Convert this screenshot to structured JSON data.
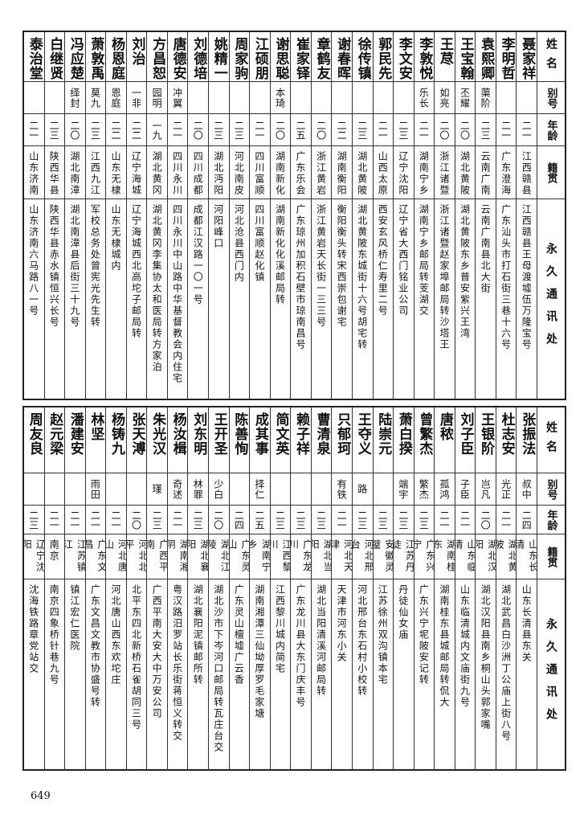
{
  "headers": {
    "name": "姓名",
    "alias": "别号",
    "age": "年龄",
    "native": "籍贯",
    "address": "永久通讯处"
  },
  "top_table": [
    {
      "name": "聂家祥",
      "alias": "",
      "age": "二一",
      "native": "江西赣县",
      "address": "江西赣县王母渡墟伍万隆宝号"
    },
    {
      "name": "李明哲",
      "alias": "",
      "age": "二一",
      "native": "广东澄海",
      "address": "广东汕头市打石街三巷十六号"
    },
    {
      "name": "袁熙卿",
      "alias": "蕖阶",
      "age": "二三",
      "native": "云南广南",
      "address": "云南广南县北大街"
    },
    {
      "name": "王宝翰",
      "alias": "丕耀",
      "age": "二〇",
      "native": "湖北黄陂",
      "address": "湖北黄陂东乡普安紫兴王湾"
    },
    {
      "name": "王荩",
      "alias": "如亮",
      "age": "二〇",
      "native": "浙江诸暨",
      "address": "浙江诸暨赵家埠邮局转沙塔王"
    },
    {
      "name": "李敦悦",
      "alias": "乐长",
      "age": "二一",
      "native": "湖南宁乡",
      "address": "湖南宁乡邮局转芰湖交"
    },
    {
      "name": "李文安",
      "alias": "",
      "age": "二三",
      "native": "辽宁沈阳",
      "address": "辽宁省大西门铭业公司"
    },
    {
      "name": "郭民先",
      "alias": "",
      "age": "二一",
      "native": "山西太原",
      "address": "西安玄风桥仁寿里二号"
    },
    {
      "name": "徐传镇",
      "alias": "",
      "age": "二三",
      "native": "湖北黄陂",
      "address": "湖北黄陂东城街十六号胡宅转"
    },
    {
      "name": "谢春晖",
      "alias": "",
      "age": "二二",
      "native": "湖南衡阳",
      "address": "衡阳衡头转宋西崇包谢宅"
    },
    {
      "name": "章鹤友",
      "alias": "",
      "age": "二〇",
      "native": "浙江黄岩",
      "address": "浙江黄岩天长街一三三号"
    },
    {
      "name": "崔家铎",
      "alias": "",
      "age": "二五",
      "native": "广东乐会",
      "address": "广东琼州加积石壁市琼南昌号"
    },
    {
      "name": "谢思聪",
      "alias": "本琦",
      "age": "二〇",
      "native": "湖南新化",
      "address": "湖南新化化溪邮局转"
    },
    {
      "name": "江硕朋",
      "alias": "",
      "age": "二一",
      "native": "四川富顺",
      "address": "四川富顺赵化镇"
    },
    {
      "name": "周家驹",
      "alias": "",
      "age": "二三",
      "native": "河北南皮",
      "address": "河北沧县西门内"
    },
    {
      "name": "姚精一",
      "alias": "",
      "age": "二三",
      "native": "湖北沔阳",
      "address": "河阳峰口"
    },
    {
      "name": "刘德培",
      "alias": "",
      "age": "二〇",
      "native": "四川成都",
      "address": "成都江汉路一〇一号"
    },
    {
      "name": "唐德安",
      "alias": "冲翼",
      "age": "二一",
      "native": "四川永川",
      "address": "四川永川中山路中华基督教会内住宅"
    },
    {
      "name": "方昌恕",
      "alias": "园明",
      "age": "一九",
      "native": "湖北黄冈",
      "address": "湖北黄冈李集协太和医局转方家泊"
    },
    {
      "name": "刘治",
      "alias": "一非",
      "age": "二二",
      "native": "辽宁海城",
      "address": "辽宁海城西北高坨子邮局转"
    },
    {
      "name": "杨恩庭",
      "alias": "恩庭",
      "age": "二二",
      "native": "山东无棣",
      "address": "山东无棣城内"
    },
    {
      "name": "萧敦禹",
      "alias": "莫九",
      "age": "二三",
      "native": "江西九江",
      "address": "军校总务处曾宪光先生转"
    },
    {
      "name": "冯应楚",
      "alias": "绎封",
      "age": "二〇",
      "native": "湖北南漳",
      "address": "湖北南漳县后街三十九号"
    },
    {
      "name": "白继贤",
      "alias": "",
      "age": "二三",
      "native": "陕西华县",
      "address": "陕西华县赤水镇恒兴长号"
    },
    {
      "name": "泰治堂",
      "alias": "",
      "age": "二一",
      "native": "山东济南",
      "address": "山东济南六马路八一号"
    }
  ],
  "bottom_table": [
    {
      "name": "张振法",
      "alias": "叔中",
      "age": "二四",
      "native": "山东长清",
      "address": "山东长清县东关"
    },
    {
      "name": "杜志安",
      "alias": "光正",
      "age": "二一",
      "native": "湖北黄陂",
      "address": "湖北武昌白沙洲丁公庙上街八号"
    },
    {
      "name": "王银阶",
      "alias": "岂凡",
      "age": "二〇",
      "native": "湖北汉阳",
      "address": "湖北汉阳县南乡桐山头郭家嘴"
    },
    {
      "name": "刘子臣",
      "alias": "子臣",
      "age": "二一",
      "native": "山东临清",
      "address": "山东临清城内文庙街九号"
    },
    {
      "name": "唐秾",
      "alias": "孤鸿",
      "age": "二一",
      "native": "湖南桂东",
      "address": "湖南桂东县城邮局转侃大"
    },
    {
      "name": "曾繁杰",
      "alias": "繁杰",
      "age": "二三",
      "native": "广东兴宁",
      "address": "广东兴宁坭陂安记转"
    },
    {
      "name": "萧白揆",
      "alias": "端宇",
      "age": "二三",
      "native": "江苏丹徒",
      "address": "丹徒仙女庙"
    },
    {
      "name": "陆崇元",
      "alias": "",
      "age": "二三",
      "native": "安徽灵璧",
      "address": "江苏徐州双沟镇本宅"
    },
    {
      "name": "王夺义",
      "alias": "路",
      "age": "二三",
      "native": "河北邢台",
      "address": "河北邢台东石村小校转"
    },
    {
      "name": "只郁珂",
      "alias": "有铁",
      "age": "二一",
      "native": "河北天津",
      "address": "天津市河东小关"
    },
    {
      "name": "曹清泉",
      "alias": "",
      "age": "二三",
      "native": "湖北当阳",
      "address": "湖北当阳清溪河邮局转"
    },
    {
      "name": "赖子祥",
      "alias": "",
      "age": "二三",
      "native": "广东龙川",
      "address": "广东龙川县大东门庆丰号"
    },
    {
      "name": "简文英",
      "alias": "",
      "age": "二三",
      "native": "江西黎川",
      "address": "江西黎川城内简宅"
    },
    {
      "name": "成其事",
      "alias": "择仁",
      "age": "二五",
      "native": "湖南宁乡",
      "address": "湖南湘潭三仙坳厚罗毛家塘"
    },
    {
      "name": "陈善恂",
      "alias": "",
      "age": "二四",
      "native": "广东灵山",
      "address": "广东灵山檀墟广云香"
    },
    {
      "name": "王开圣",
      "alias": "少白",
      "age": "二〇",
      "native": "湖北江陵",
      "address": "湖北沙市下岑河口邮局转瓦庄台交"
    },
    {
      "name": "刘东明",
      "alias": "林罪",
      "age": "二三",
      "native": "湖北襄阳",
      "address": "湖北襄阳泥镇邮所转"
    },
    {
      "name": "杨汝楫",
      "alias": "奇述",
      "age": "二一",
      "native": "湖南湘阴",
      "address": "粤汉路汨罗站长乐街蒋恒义转交"
    },
    {
      "name": "朱光汉",
      "alias": "瑾",
      "age": "二三",
      "native": "广西平南",
      "address": "广西平南大安大中万安公司"
    },
    {
      "name": "张天溥",
      "alias": "",
      "age": "二〇",
      "native": "河北北平",
      "address": "北平东四北新桥石雀胡同三号"
    },
    {
      "name": "杨铸九",
      "alias": "",
      "age": "二一",
      "native": "河北唐山",
      "address": "河北唐山西东欢坨庄"
    },
    {
      "name": "林坚",
      "alias": "雨田",
      "age": "二一",
      "native": "广东文昌",
      "address": "广东文昌文教市协盛号转"
    },
    {
      "name": "潘建安",
      "alias": "",
      "age": "二一",
      "native": "江苏镇江",
      "address": "镇江宏仁医院"
    },
    {
      "name": "赵元梁",
      "alias": "",
      "age": "二一",
      "native": "南京",
      "address": "南京四象桥针巷九号"
    },
    {
      "name": "周友良",
      "alias": "",
      "age": "二三",
      "native": "辽宁沈阳",
      "address": "沈海铁路章党站交"
    }
  ],
  "page_number": "649"
}
